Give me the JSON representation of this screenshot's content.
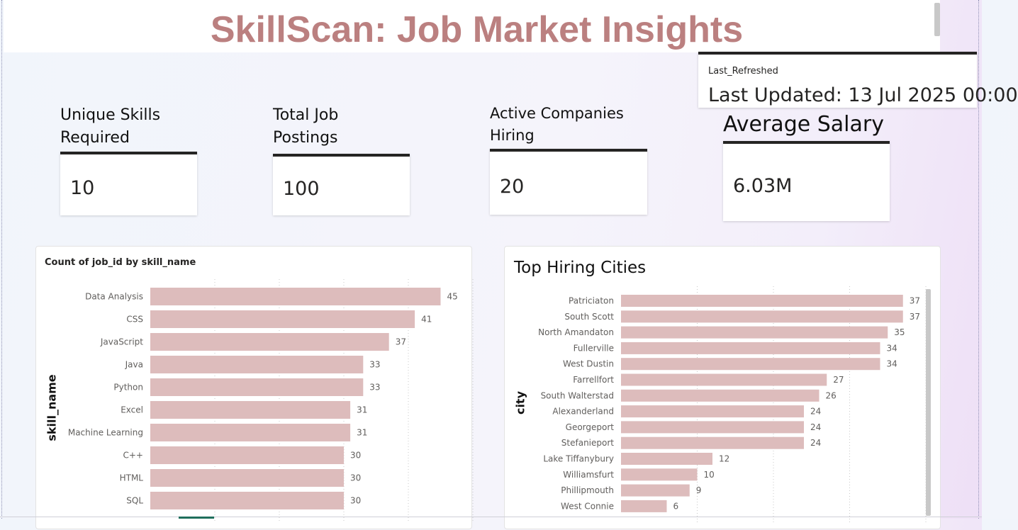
{
  "report": {
    "title": "SkillScan: Job Market Insights",
    "title_color": "#bb8080",
    "bar_color": "#ddbcbc"
  },
  "last_refreshed": {
    "label": "Last_Refreshed",
    "value": "Last Updated: 13 Jul 2025 00:00"
  },
  "kpis": [
    {
      "title": "Unique Skills Required",
      "value": "10"
    },
    {
      "title": "Total Job Postings",
      "value": "100"
    },
    {
      "title": "Active Companies Hiring",
      "value": "20"
    },
    {
      "title": "Average Salary",
      "value": "6.03M"
    }
  ],
  "chart_data": [
    {
      "type": "bar",
      "orientation": "horizontal",
      "title": "Count of job_id by skill_name",
      "ylabel": "skill_name",
      "xlabel": "",
      "xlim": [
        0,
        50
      ],
      "grid": true,
      "categories": [
        "Data Analysis",
        "CSS",
        "JavaScript",
        "Java",
        "Python",
        "Excel",
        "Machine Learning",
        "C++",
        "HTML",
        "SQL"
      ],
      "values": [
        45,
        41,
        37,
        33,
        33,
        31,
        31,
        30,
        30,
        30
      ]
    },
    {
      "type": "bar",
      "orientation": "horizontal",
      "title": "Top Hiring Cities",
      "ylabel": "city",
      "xlabel": "",
      "xlim": [
        0,
        40
      ],
      "grid": true,
      "categories": [
        "Patriciaton",
        "South Scott",
        "North Amandaton",
        "Fullerville",
        "West Dustin",
        "Farrellfort",
        "South Walterstad",
        "Alexanderland",
        "Georgeport",
        "Stefanieport",
        "Lake Tiffanybury",
        "Williamsfurt",
        "Phillipmouth",
        "West Connie"
      ],
      "values": [
        37,
        37,
        35,
        34,
        34,
        27,
        26,
        24,
        24,
        24,
        12,
        10,
        9,
        6
      ]
    }
  ]
}
